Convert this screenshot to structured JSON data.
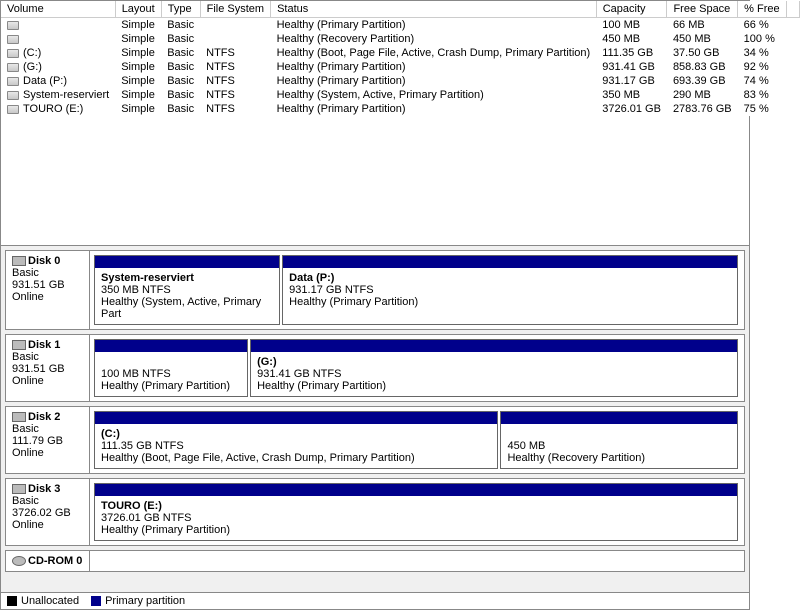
{
  "columns": [
    "Volume",
    "Layout",
    "Type",
    "File System",
    "Status",
    "Capacity",
    "Free Space",
    "% Free"
  ],
  "volumes": [
    {
      "icon": true,
      "name": "",
      "layout": "Simple",
      "vtype": "Basic",
      "fs": "",
      "status": "Healthy (Primary Partition)",
      "cap": "100 MB",
      "free": "66 MB",
      "pct": "66 %"
    },
    {
      "icon": true,
      "name": "",
      "layout": "Simple",
      "vtype": "Basic",
      "fs": "",
      "status": "Healthy (Recovery Partition)",
      "cap": "450 MB",
      "free": "450 MB",
      "pct": "100 %"
    },
    {
      "icon": true,
      "name": "(C:)",
      "layout": "Simple",
      "vtype": "Basic",
      "fs": "NTFS",
      "status": "Healthy (Boot, Page File, Active, Crash Dump, Primary Partition)",
      "cap": "111.35 GB",
      "free": "37.50 GB",
      "pct": "34 %"
    },
    {
      "icon": true,
      "name": "(G:)",
      "layout": "Simple",
      "vtype": "Basic",
      "fs": "NTFS",
      "status": "Healthy (Primary Partition)",
      "cap": "931.41 GB",
      "free": "858.83 GB",
      "pct": "92 %"
    },
    {
      "icon": true,
      "name": "Data (P:)",
      "layout": "Simple",
      "vtype": "Basic",
      "fs": "NTFS",
      "status": "Healthy (Primary Partition)",
      "cap": "931.17 GB",
      "free": "693.39 GB",
      "pct": "74 %"
    },
    {
      "icon": true,
      "name": "System-reserviert",
      "layout": "Simple",
      "vtype": "Basic",
      "fs": "NTFS",
      "status": "Healthy (System, Active, Primary Partition)",
      "cap": "350 MB",
      "free": "290 MB",
      "pct": "83 %"
    },
    {
      "icon": true,
      "name": "TOURO (E:)",
      "layout": "Simple",
      "vtype": "Basic",
      "fs": "NTFS",
      "status": "Healthy (Primary Partition)",
      "cap": "3726.01 GB",
      "free": "2783.76 GB",
      "pct": "75 %"
    }
  ],
  "colwidths": [
    "110px",
    "46px",
    "40px",
    "74px",
    "auto",
    "66px",
    "68px",
    "48px",
    "17px"
  ],
  "disks": [
    {
      "name": "Disk 0",
      "type": "Basic",
      "size": "931.51 GB",
      "state": "Online",
      "parts": [
        {
          "w": "29%",
          "title": "System-reserviert",
          "l2": "350 MB NTFS",
          "l3": "Healthy (System, Active, Primary Part"
        },
        {
          "w": "71%",
          "title": "Data  (P:)",
          "l2": "931.17 GB NTFS",
          "l3": "Healthy (Primary Partition)"
        }
      ]
    },
    {
      "name": "Disk 1",
      "type": "Basic",
      "size": "931.51 GB",
      "state": "Online",
      "parts": [
        {
          "w": "24%",
          "title": "",
          "l2": "100 MB NTFS",
          "l3": "Healthy (Primary Partition)"
        },
        {
          "w": "76%",
          "title": " (G:)",
          "l2": "931.41 GB NTFS",
          "l3": "Healthy (Primary Partition)"
        }
      ]
    },
    {
      "name": "Disk 2",
      "type": "Basic",
      "size": "111.79 GB",
      "state": "Online",
      "parts": [
        {
          "w": "63%",
          "title": "(C:)",
          "l2": "111.35 GB NTFS",
          "l3": "Healthy (Boot, Page File, Active, Crash Dump, Primary Partition)"
        },
        {
          "w": "37%",
          "title": "",
          "l2": "450 MB",
          "l3": "Healthy (Recovery Partition)"
        }
      ]
    },
    {
      "name": "Disk 3",
      "type": "Basic",
      "size": "3726.02 GB",
      "state": "Online",
      "parts": [
        {
          "w": "100%",
          "title": "TOURO  (E:)",
          "l2": "3726.01 GB NTFS",
          "l3": "Healthy (Primary Partition)"
        }
      ]
    }
  ],
  "cdrom": "CD-ROM 0",
  "legend": {
    "unalloc": "Unallocated",
    "primary": "Primary partition",
    "unalloc_color": "#000000",
    "primary_color": "#00008b"
  }
}
